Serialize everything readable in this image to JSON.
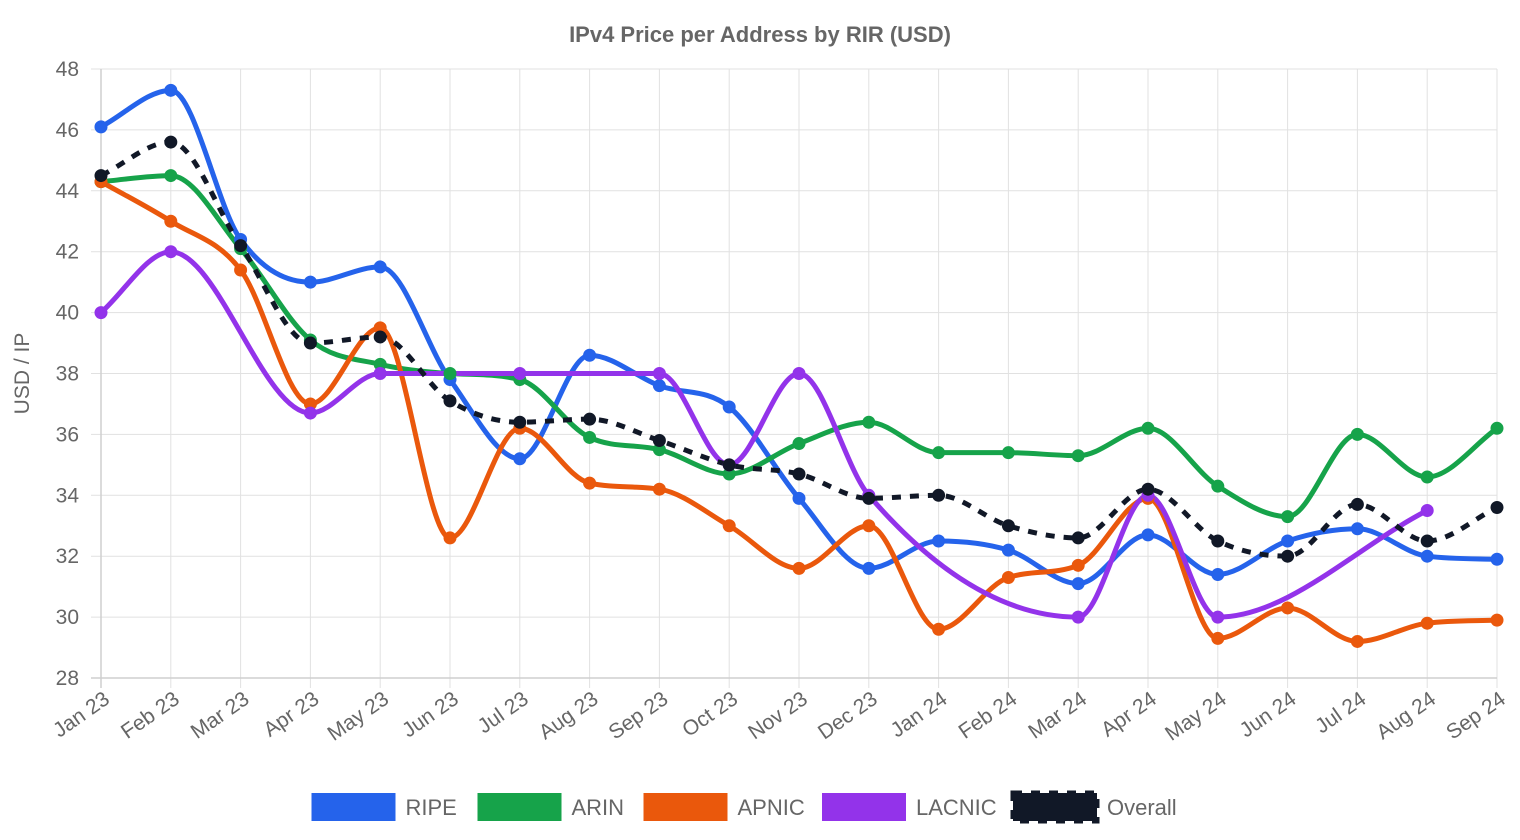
{
  "chart_data": {
    "type": "line",
    "title": "IPv4 Price per Address by RIR (USD)",
    "xlabel": "",
    "ylabel": "USD / IP",
    "ylim": [
      28,
      48
    ],
    "yticks": [
      28,
      30,
      32,
      34,
      36,
      38,
      40,
      42,
      44,
      46,
      48
    ],
    "grid": true,
    "legend_position": "bottom",
    "categories": [
      "Jan 23",
      "Feb 23",
      "Mar 23",
      "Apr 23",
      "May 23",
      "Jun 23",
      "Jul 23",
      "Aug 23",
      "Sep 23",
      "Oct 23",
      "Nov 23",
      "Dec 23",
      "Jan 24",
      "Feb 24",
      "Mar 24",
      "Apr 24",
      "May 24",
      "Jun 24",
      "Jul 24",
      "Aug 24",
      "Sep 24"
    ],
    "series": [
      {
        "name": "RIPE",
        "color": "#2563eb",
        "dashed": false,
        "values": [
          46.1,
          47.3,
          42.4,
          41.0,
          41.5,
          37.8,
          35.2,
          38.6,
          37.6,
          36.9,
          33.9,
          31.6,
          32.5,
          32.2,
          31.1,
          32.7,
          31.4,
          32.5,
          32.9,
          32.0,
          31.9
        ]
      },
      {
        "name": "ARIN",
        "color": "#16a34a",
        "dashed": false,
        "values": [
          44.3,
          44.5,
          42.1,
          39.1,
          38.3,
          38.0,
          37.8,
          35.9,
          35.5,
          34.7,
          35.7,
          36.4,
          35.4,
          35.4,
          35.3,
          36.2,
          34.3,
          33.3,
          36.0,
          34.6,
          36.2
        ]
      },
      {
        "name": "APNIC",
        "color": "#ea580c",
        "dashed": false,
        "values": [
          44.3,
          43.0,
          41.4,
          37.0,
          39.5,
          32.6,
          36.2,
          34.4,
          34.2,
          33.0,
          31.6,
          33.0,
          29.6,
          31.3,
          31.7,
          33.9,
          29.3,
          30.3,
          29.2,
          29.8,
          29.9
        ]
      },
      {
        "name": "LACNIC",
        "color": "#9333ea",
        "dashed": false,
        "values": [
          40.0,
          42.0,
          null,
          36.7,
          38.0,
          null,
          38.0,
          null,
          38.0,
          35.0,
          38.0,
          34.0,
          null,
          null,
          30.0,
          34.0,
          30.0,
          null,
          null,
          33.5,
          null
        ]
      },
      {
        "name": "Overall",
        "color": "#111827",
        "dashed": true,
        "values": [
          44.5,
          45.6,
          42.2,
          39.0,
          39.2,
          37.1,
          36.4,
          36.5,
          35.8,
          35.0,
          34.7,
          33.9,
          34.0,
          33.0,
          32.6,
          34.2,
          32.5,
          32.0,
          33.7,
          32.5,
          33.6
        ]
      }
    ]
  }
}
